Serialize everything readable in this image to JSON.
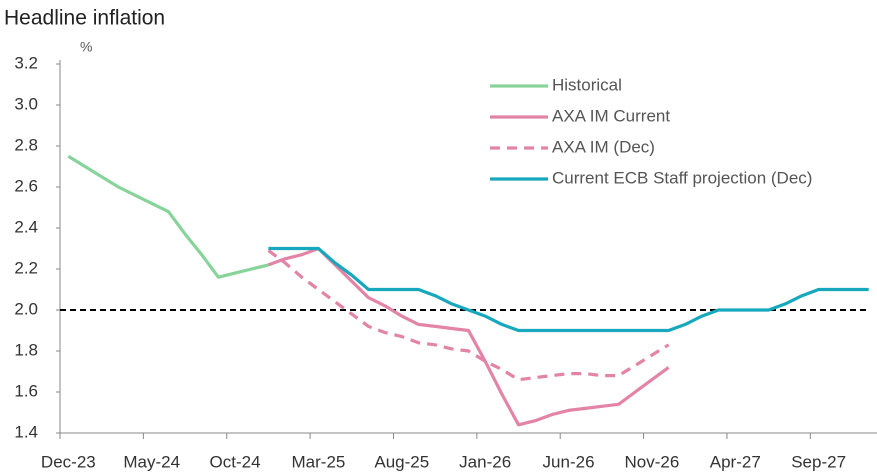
{
  "chart_data": {
    "type": "line",
    "title": "Headline inflation",
    "y_unit": "%",
    "categories": [
      "Dec-23",
      null,
      null,
      null,
      null,
      "May-24",
      null,
      null,
      null,
      null,
      "Oct-24",
      null,
      null,
      null,
      null,
      "Mar-25",
      null,
      null,
      null,
      null,
      "Aug-25",
      null,
      null,
      null,
      null,
      "Jan-26",
      null,
      null,
      null,
      null,
      "Jun-26",
      null,
      null,
      null,
      null,
      "Nov-26",
      null,
      null,
      null,
      null,
      "Apr-27",
      null,
      null,
      null,
      null,
      "Sep-27",
      null,
      null,
      null
    ],
    "ylim": [
      1.4,
      3.2
    ],
    "yticks": [
      1.4,
      1.6,
      1.8,
      {
        "value": 2,
        "label": "2.0"
      },
      2.2,
      2.4,
      2.6,
      2.8,
      {
        "value": 3,
        "label": "3.0"
      },
      3.2
    ],
    "reference_line": 2,
    "legend": "top-right",
    "series": [
      {
        "name": "Historical",
        "color": "#86d49a",
        "dashed": false,
        "values": [
          2.75,
          2.7,
          2.65,
          2.6,
          2.56,
          2.52,
          2.48,
          2.37,
          2.27,
          2.16,
          2.18,
          2.2,
          2.22,
          null,
          null,
          null,
          null,
          null,
          null,
          null,
          null,
          null,
          null,
          null,
          null,
          null,
          null,
          null,
          null,
          null,
          null,
          null,
          null,
          null,
          null,
          null,
          null,
          null,
          null,
          null,
          null,
          null,
          null,
          null,
          null,
          null,
          null,
          null,
          null
        ]
      },
      {
        "name": "AXA IM Current",
        "color": "#e384a6",
        "dashed": false,
        "values": [
          null,
          null,
          null,
          null,
          null,
          null,
          null,
          null,
          null,
          null,
          null,
          null,
          2.22,
          2.25,
          2.27,
          2.3,
          2.22,
          2.14,
          2.06,
          2.02,
          1.97,
          1.93,
          1.92,
          1.91,
          1.9,
          1.75,
          1.59,
          1.44,
          1.46,
          1.49,
          1.51,
          1.52,
          1.53,
          1.54,
          1.6,
          1.66,
          1.72,
          null,
          null,
          null,
          null,
          null,
          null,
          null,
          null,
          null,
          null,
          null,
          null
        ]
      },
      {
        "name": "AXA IM (Dec)",
        "color": "#e384a6",
        "dashed": true,
        "values": [
          null,
          null,
          null,
          null,
          null,
          null,
          null,
          null,
          null,
          null,
          null,
          null,
          2.29,
          2.23,
          2.16,
          2.1,
          2.04,
          1.98,
          1.92,
          1.89,
          1.87,
          1.84,
          1.83,
          1.81,
          1.8,
          1.75,
          1.71,
          1.66,
          1.67,
          1.68,
          1.69,
          1.69,
          1.68,
          1.68,
          1.73,
          1.78,
          1.83,
          null,
          null,
          null,
          null,
          null,
          null,
          null,
          null,
          null,
          null,
          null,
          null
        ]
      },
      {
        "name": "Current ECB Staff projection (Dec)",
        "color": "#17a8be",
        "dashed": false,
        "values": [
          null,
          null,
          null,
          null,
          null,
          null,
          null,
          null,
          null,
          null,
          null,
          null,
          2.3,
          2.3,
          2.3,
          2.3,
          2.23,
          2.17,
          2.1,
          2.1,
          2.1,
          2.1,
          2.07,
          2.03,
          2.0,
          1.97,
          1.93,
          1.9,
          1.9,
          1.9,
          1.9,
          1.9,
          1.9,
          1.9,
          1.9,
          1.9,
          1.9,
          1.93,
          1.97,
          2.0,
          2.0,
          2.0,
          2.0,
          2.03,
          2.07,
          2.1,
          2.1,
          2.1,
          2.1
        ]
      }
    ]
  }
}
